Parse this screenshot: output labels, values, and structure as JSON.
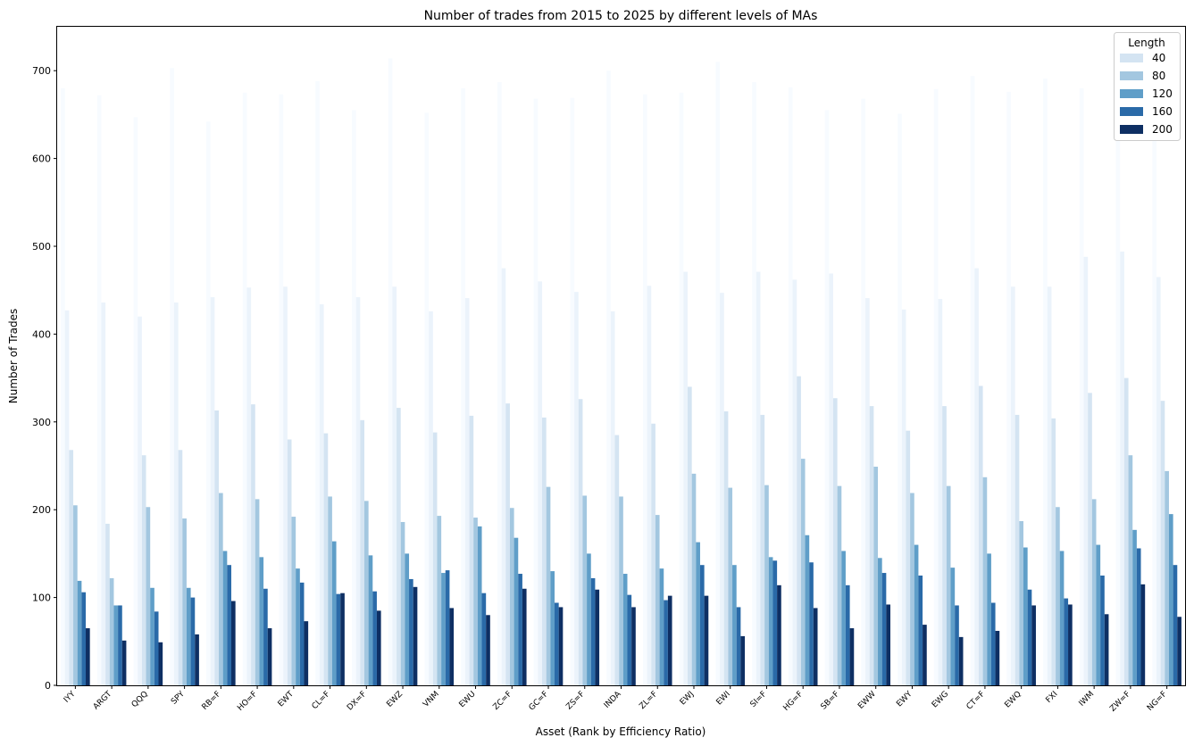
{
  "chart_data": {
    "type": "bar",
    "title": "Number of trades from 2015 to 2025 by different levels of MAs",
    "xlabel": "Asset (Rank by Efficiency Ratio)",
    "ylabel": "Number of Trades",
    "ylim": [
      0,
      750
    ],
    "yticks": [
      0,
      100,
      200,
      300,
      400,
      500,
      600,
      700
    ],
    "grid": false,
    "legend": {
      "title": "Length",
      "placement": "top-right"
    },
    "categories": [
      "IYY",
      "ARGT",
      "QQQ",
      "SPY",
      "RB=F",
      "HO=F",
      "EWT",
      "CL=F",
      "DX=F",
      "EWZ",
      "VNM",
      "EWU",
      "ZC=F",
      "GC=F",
      "ZS=F",
      "INDA",
      "ZL=F",
      "EWJ",
      "EWI",
      "SI=F",
      "HG=F",
      "SB=F",
      "EWW",
      "EWY",
      "EWG",
      "CT=F",
      "EWQ",
      "FXI",
      "IWM",
      "ZW=F",
      "NG=F"
    ],
    "series": [
      {
        "name": "40",
        "color": "#d4e4f2",
        "values": [
          268,
          184,
          262,
          268,
          313,
          320,
          280,
          287,
          302,
          316,
          288,
          307,
          321,
          305,
          326,
          285,
          298,
          340,
          312,
          308,
          352,
          327,
          318,
          290,
          318,
          341,
          308,
          304,
          333,
          350,
          324
        ]
      },
      {
        "name": "80",
        "color": "#a3c7e0",
        "values": [
          205,
          122,
          203,
          190,
          219,
          212,
          192,
          215,
          210,
          186,
          193,
          191,
          202,
          226,
          216,
          215,
          194,
          241,
          225,
          228,
          258,
          227,
          249,
          219,
          227,
          237,
          187,
          203,
          212,
          262,
          244
        ]
      },
      {
        "name": "120",
        "color": "#5f9ec8",
        "values": [
          119,
          91,
          111,
          111,
          153,
          146,
          133,
          164,
          148,
          150,
          128,
          181,
          168,
          130,
          150,
          127,
          133,
          163,
          137,
          146,
          171,
          153,
          145,
          160,
          134,
          150,
          157,
          153,
          160,
          177,
          195
        ]
      },
      {
        "name": "160",
        "color": "#2a6aa8",
        "values": [
          106,
          91,
          84,
          100,
          137,
          110,
          117,
          104,
          107,
          121,
          131,
          105,
          127,
          94,
          122,
          103,
          97,
          137,
          89,
          142,
          140,
          114,
          128,
          125,
          91,
          94,
          109,
          99,
          125,
          156,
          137
        ]
      },
      {
        "name": "200",
        "color": "#0e2f63",
        "values": [
          65,
          51,
          49,
          58,
          96,
          65,
          73,
          105,
          85,
          112,
          88,
          80,
          110,
          89,
          109,
          89,
          102,
          102,
          56,
          114,
          88,
          65,
          92,
          69,
          55,
          62,
          91,
          92,
          81,
          115,
          78
        ]
      }
    ],
    "faded_series": [
      {
        "values": [
          680,
          672,
          647,
          703,
          642,
          675,
          673,
          688,
          655,
          714,
          652,
          680,
          687,
          668,
          669,
          700,
          673,
          675,
          710,
          687,
          681,
          655,
          668,
          651,
          679,
          694,
          676,
          691,
          680,
          621,
          621
        ]
      },
      {
        "values": [
          427,
          436,
          420,
          436,
          442,
          453,
          454,
          434,
          442,
          454,
          426,
          441,
          475,
          460,
          448,
          426,
          455,
          471,
          447,
          471,
          462,
          469,
          441,
          428,
          440,
          475,
          454,
          454,
          488,
          494,
          465
        ]
      }
    ]
  }
}
